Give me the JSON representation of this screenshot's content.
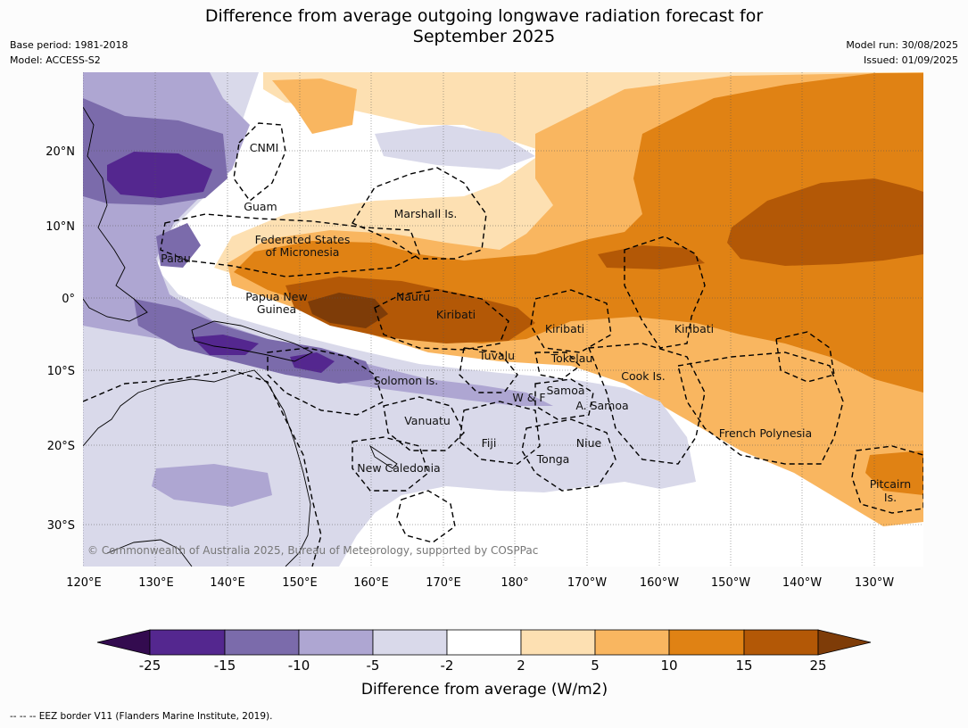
{
  "header": {
    "title_line1": "Difference from average outgoing longwave radiation forecast for",
    "title_line2": "September 2025",
    "base_period": "Base period: 1981-2018",
    "model": "Model: ACCESS-S2",
    "model_run": "Model run: 30/08/2025",
    "issued": "Issued: 01/09/2025"
  },
  "chart_data": {
    "type": "heatmap",
    "title": "Difference from average outgoing longwave radiation forecast for September 2025",
    "lon_ticks": [
      "120°E",
      "130°E",
      "140°E",
      "150°E",
      "160°E",
      "170°E",
      "180°",
      "170°W",
      "160°W",
      "150°W",
      "140°W",
      "130°W"
    ],
    "lat_ticks": [
      "20°N",
      "10°N",
      "0°",
      "10°S",
      "20°S",
      "30°S"
    ],
    "lon_range": [
      120,
      237
    ],
    "lat_range": [
      -37,
      31
    ],
    "grid": true,
    "colorbar": {
      "label": "Difference from average (W/m2)",
      "ticks": [
        "-25",
        "-15",
        "-10",
        "-5",
        "-2",
        "2",
        "5",
        "10",
        "15",
        "25"
      ],
      "colors": [
        "#330b4f",
        "#54278f",
        "#7b6bab",
        "#aea6d2",
        "#d9d9ea",
        "#ffffff",
        "#fde0b2",
        "#f9b660",
        "#e08214",
        "#b35806",
        "#7e3c08"
      ]
    },
    "places": [
      {
        "name": "CNMI",
        "lon": 147.5,
        "lat": 20.5
      },
      {
        "name": "Guam",
        "lon": 144.5,
        "lat": 12.7
      },
      {
        "name": "Marshall Is.",
        "lon": 170,
        "lat": 11.7
      },
      {
        "name": "Federated States",
        "lon": 150.5,
        "lat": 8.0
      },
      {
        "name": "of Micronesia",
        "lon": 150.5,
        "lat": 6.2
      },
      {
        "name": "Palau",
        "lon": 133,
        "lat": 5.3
      },
      {
        "name": "Papua New",
        "lon": 147,
        "lat": 0.0
      },
      {
        "name": "Guinea",
        "lon": 147,
        "lat": -1.7
      },
      {
        "name": "Nauru",
        "lon": 166,
        "lat": 0.0
      },
      {
        "name": "Kiribati",
        "lon": 174,
        "lat": -2.3
      },
      {
        "name": "Kiribati",
        "lon": 187,
        "lat": -4.4
      },
      {
        "name": "Kiribati",
        "lon": 205,
        "lat": -4.3
      },
      {
        "name": "Tuvalu",
        "lon": 178,
        "lat": -8.4
      },
      {
        "name": "Tokelau",
        "lon": 190,
        "lat": -8.7
      },
      {
        "name": "Cook Is.",
        "lon": 202,
        "lat": -11.0
      },
      {
        "name": "Solomon Is.",
        "lon": 165,
        "lat": -11.5
      },
      {
        "name": "Samoa",
        "lon": 187,
        "lat": -13.0
      },
      {
        "name": "W & F",
        "lon": 182,
        "lat": -14.0
      },
      {
        "name": "A. Samoa",
        "lon": 192.5,
        "lat": -14.5
      },
      {
        "name": "Vanuatu",
        "lon": 168,
        "lat": -16.6
      },
      {
        "name": "Fiji",
        "lon": 178.5,
        "lat": -20.0
      },
      {
        "name": "Niue",
        "lon": 190.5,
        "lat": -20.0
      },
      {
        "name": "Tonga",
        "lon": 185.5,
        "lat": -21.8
      },
      {
        "name": "French Polynesia",
        "lon": 218,
        "lat": -18.8
      },
      {
        "name": "New Caledonia",
        "lon": 164,
        "lat": -23.4
      },
      {
        "name": "Pitcairn",
        "lon": 233,
        "lat": -25.6
      },
      {
        "name": "Is.",
        "lon": 233,
        "lat": -27.3
      }
    ]
  },
  "copyright": "© Commonwealth of Australia 2025, Bureau of Meteorology, supported by COSPPac",
  "footer": "--  --  -- EEZ border V11 (Flanders Marine Institute, 2019)."
}
